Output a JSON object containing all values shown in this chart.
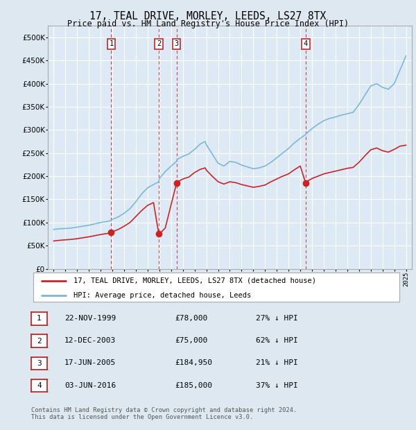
{
  "title": "17, TEAL DRIVE, MORLEY, LEEDS, LS27 8TX",
  "subtitle": "Price paid vs. HM Land Registry's House Price Index (HPI)",
  "background_color": "#dde8f0",
  "plot_bg_color": "#ddeaf5",
  "grid_color": "#c8d8e8",
  "hpi_color": "#7ab8d8",
  "price_color": "#cc2222",
  "dot_color": "#cc2222",
  "vline_color": "#cc2222",
  "legend_line1": "17, TEAL DRIVE, MORLEY, LEEDS, LS27 8TX (detached house)",
  "legend_line2": "HPI: Average price, detached house, Leeds",
  "footer": "Contains HM Land Registry data © Crown copyright and database right 2024.\nThis data is licensed under the Open Government Licence v3.0.",
  "transactions": [
    {
      "num": 1,
      "date_label": "22-NOV-1999",
      "year": 1999.9,
      "price": 78000,
      "pct": "27% ↓ HPI"
    },
    {
      "num": 2,
      "date_label": "12-DEC-2003",
      "year": 2003.95,
      "price": 75000,
      "pct": "62% ↓ HPI"
    },
    {
      "num": 3,
      "date_label": "17-JUN-2005",
      "year": 2005.46,
      "price": 184950,
      "pct": "21% ↓ HPI"
    },
    {
      "num": 4,
      "date_label": "03-JUN-2016",
      "year": 2016.46,
      "price": 185000,
      "pct": "37% ↓ HPI"
    }
  ],
  "ylim": [
    0,
    525000
  ],
  "xlim": [
    1994.5,
    2025.5
  ],
  "yticks": [
    0,
    50000,
    100000,
    150000,
    200000,
    250000,
    300000,
    350000,
    400000,
    450000,
    500000
  ],
  "ytick_labels": [
    "£0",
    "£50K",
    "£100K",
    "£150K",
    "£200K",
    "£250K",
    "£300K",
    "£350K",
    "£400K",
    "£450K",
    "£500K"
  ]
}
